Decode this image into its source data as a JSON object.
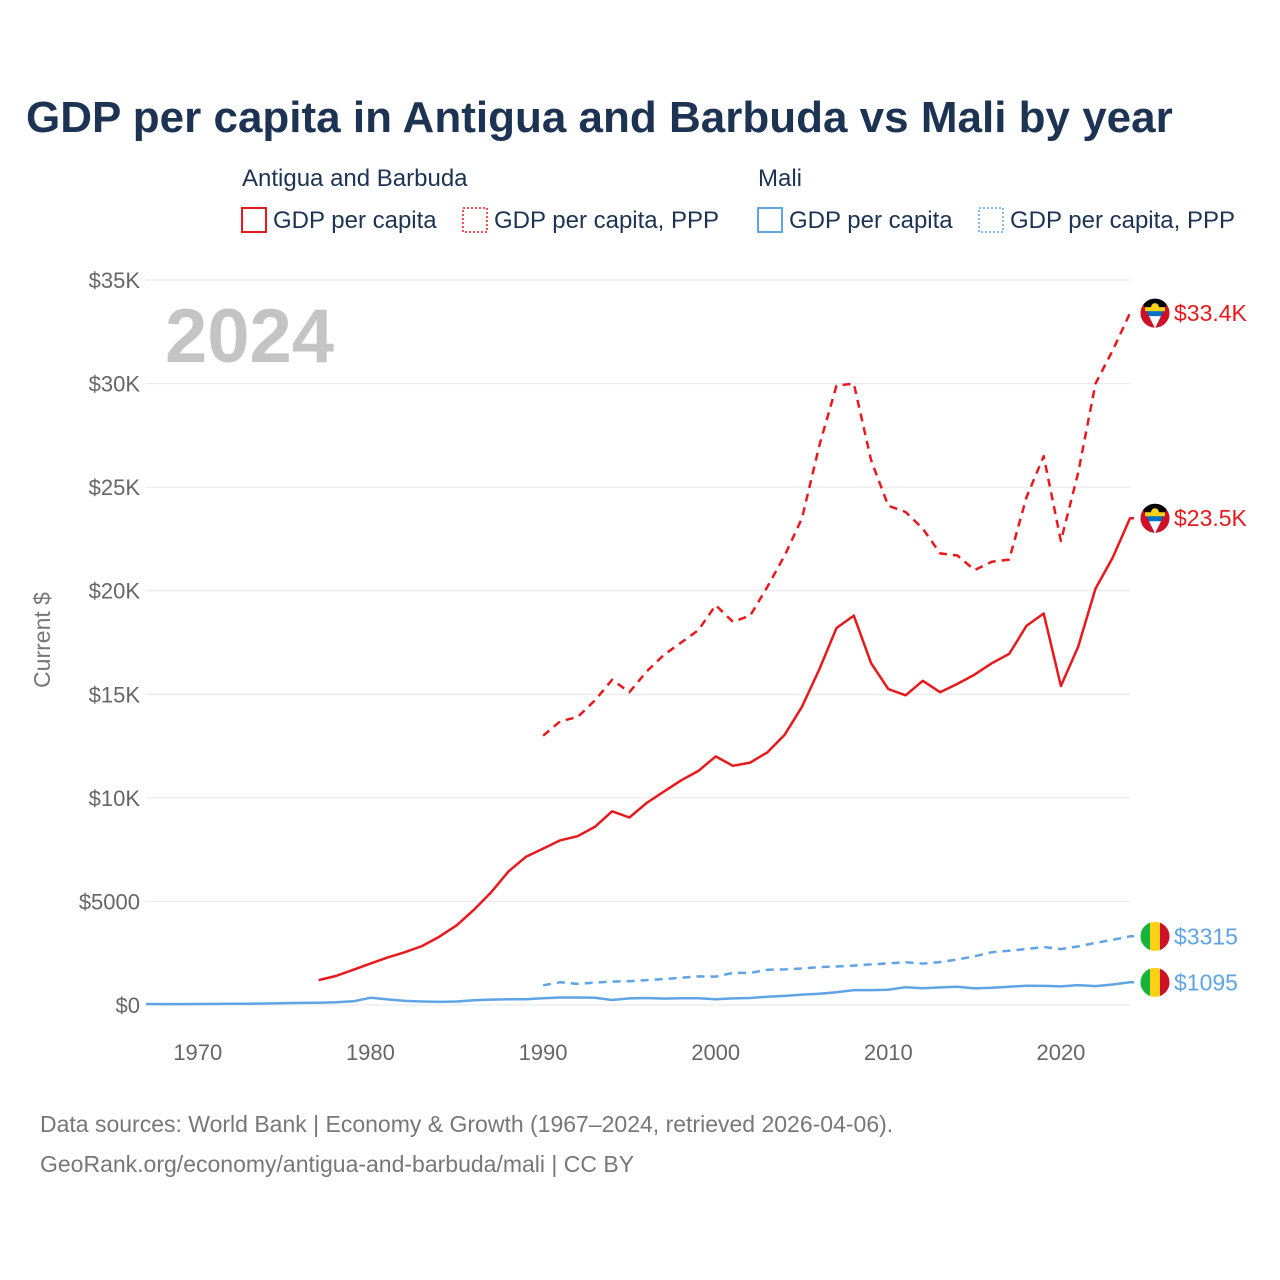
{
  "chart_data": {
    "type": "line",
    "title": "GDP per capita in Antigua and Barbuda vs Mali by year",
    "ylabel": "Current $",
    "xlabel": "",
    "year_label": "2024",
    "xlim": [
      1967,
      2024
    ],
    "ylim": [
      0,
      35000
    ],
    "x_ticks": [
      {
        "value": 1970,
        "label": "1970"
      },
      {
        "value": 1980,
        "label": "1980"
      },
      {
        "value": 1990,
        "label": "1990"
      },
      {
        "value": 2000,
        "label": "2000"
      },
      {
        "value": 2010,
        "label": "2010"
      },
      {
        "value": 2020,
        "label": "2020"
      }
    ],
    "y_ticks": [
      {
        "value": 0,
        "label": "$0"
      },
      {
        "value": 5000,
        "label": "$5000"
      },
      {
        "value": 10000,
        "label": "$10K"
      },
      {
        "value": 15000,
        "label": "$15K"
      },
      {
        "value": 20000,
        "label": "$20K"
      },
      {
        "value": 25000,
        "label": "$25K"
      },
      {
        "value": 30000,
        "label": "$30K"
      },
      {
        "value": 35000,
        "label": "$35K"
      }
    ],
    "legend": [
      {
        "group": "Antigua and Barbuda",
        "color": "#e8191c",
        "items": [
          {
            "label": "GDP per capita",
            "style": "solid"
          },
          {
            "label": "GDP per capita, PPP",
            "style": "dotted"
          }
        ]
      },
      {
        "group": "Mali",
        "color": "#5fa4e5",
        "items": [
          {
            "label": "GDP per capita",
            "style": "solid"
          },
          {
            "label": "GDP per capita, PPP",
            "style": "dotted"
          }
        ]
      }
    ],
    "series": [
      {
        "name": "Antigua and Barbuda GDP per capita, PPP",
        "country": "antigua",
        "color": "#e8191c",
        "dash": true,
        "end_label": "$33.4K",
        "x": [
          1990,
          1991,
          1992,
          1993,
          1994,
          1995,
          1996,
          1997,
          1998,
          1999,
          2000,
          2001,
          2002,
          2003,
          2004,
          2005,
          2006,
          2007,
          2008,
          2009,
          2010,
          2011,
          2012,
          2013,
          2014,
          2015,
          2016,
          2017,
          2018,
          2019,
          2020,
          2021,
          2022,
          2023,
          2024
        ],
        "values": [
          13000,
          13700,
          13900,
          14700,
          15700,
          15100,
          16100,
          16900,
          17500,
          18100,
          19300,
          18500,
          18800,
          20200,
          21700,
          23500,
          27000,
          29900,
          30000,
          26300,
          24100,
          23800,
          23000,
          21800,
          21700,
          21000,
          21400,
          21500,
          24500,
          26500,
          22400,
          25700,
          30000,
          31600,
          33400
        ]
      },
      {
        "name": "Antigua and Barbuda GDP per capita",
        "country": "antigua",
        "color": "#e8191c",
        "dash": false,
        "end_label": "$23.5K",
        "x": [
          1977,
          1978,
          1979,
          1980,
          1981,
          1982,
          1983,
          1984,
          1985,
          1986,
          1987,
          1988,
          1989,
          1990,
          1991,
          1992,
          1993,
          1994,
          1995,
          1996,
          1997,
          1998,
          1999,
          2000,
          2001,
          2002,
          2003,
          2004,
          2005,
          2006,
          2007,
          2008,
          2009,
          2010,
          2011,
          2012,
          2013,
          2014,
          2015,
          2016,
          2017,
          2018,
          2019,
          2020,
          2021,
          2022,
          2023,
          2024
        ],
        "values": [
          1200,
          1400,
          1700,
          2000,
          2300,
          2550,
          2850,
          3300,
          3850,
          4600,
          5450,
          6450,
          7150,
          7550,
          7950,
          8150,
          8600,
          9350,
          9050,
          9750,
          10300,
          10850,
          11300,
          12000,
          11550,
          11700,
          12200,
          13050,
          14400,
          16200,
          18200,
          18800,
          16500,
          15250,
          14950,
          15650,
          15100,
          15500,
          15950,
          16500,
          16950,
          18300,
          18900,
          15400,
          17300,
          20100,
          21600,
          23500
        ]
      },
      {
        "name": "Mali GDP per capita, PPP",
        "country": "mali",
        "color": "#5fa4e5",
        "dash": true,
        "end_label": "$3315",
        "x": [
          1990,
          1991,
          1992,
          1993,
          1994,
          1995,
          1996,
          1997,
          1998,
          1999,
          2000,
          2001,
          2002,
          2003,
          2004,
          2005,
          2006,
          2007,
          2008,
          2009,
          2010,
          2011,
          2012,
          2013,
          2014,
          2015,
          2016,
          2017,
          2018,
          2019,
          2020,
          2021,
          2022,
          2023,
          2024
        ],
        "values": [
          950,
          1100,
          1020,
          1080,
          1130,
          1150,
          1200,
          1250,
          1320,
          1380,
          1370,
          1550,
          1550,
          1700,
          1720,
          1760,
          1830,
          1860,
          1900,
          1960,
          2010,
          2060,
          2000,
          2070,
          2200,
          2350,
          2550,
          2620,
          2700,
          2800,
          2700,
          2830,
          3000,
          3150,
          3315
        ]
      },
      {
        "name": "Mali GDP per capita",
        "country": "mali",
        "color": "#5fa4e5",
        "dash": false,
        "end_label": "$1095",
        "x": [
          1967,
          1968,
          1969,
          1970,
          1971,
          1972,
          1973,
          1974,
          1975,
          1976,
          1977,
          1978,
          1979,
          1980,
          1981,
          1982,
          1983,
          1984,
          1985,
          1986,
          1987,
          1988,
          1989,
          1990,
          1991,
          1992,
          1993,
          1994,
          1995,
          1996,
          1997,
          1998,
          1999,
          2000,
          2001,
          2002,
          2003,
          2004,
          2005,
          2006,
          2007,
          2008,
          2009,
          2010,
          2011,
          2012,
          2013,
          2014,
          2015,
          2016,
          2017,
          2018,
          2019,
          2020,
          2021,
          2022,
          2023,
          2024
        ],
        "values": [
          50,
          45,
          45,
          50,
          55,
          60,
          65,
          70,
          90,
          100,
          110,
          130,
          180,
          350,
          270,
          200,
          170,
          150,
          170,
          230,
          260,
          280,
          280,
          330,
          360,
          360,
          350,
          240,
          320,
          340,
          310,
          330,
          330,
          280,
          320,
          340,
          400,
          440,
          500,
          540,
          620,
          720,
          720,
          740,
          860,
          810,
          850,
          880,
          800,
          830,
          880,
          930,
          920,
          900,
          960,
          910,
          990,
          1095
        ]
      }
    ]
  },
  "footer": {
    "line1": "Data sources: World Bank | Economy & Growth (1967–2024, retrieved 2026-04-06).",
    "line2": "GeoRank.org/economy/antigua-and-barbuda/mali | CC BY"
  }
}
